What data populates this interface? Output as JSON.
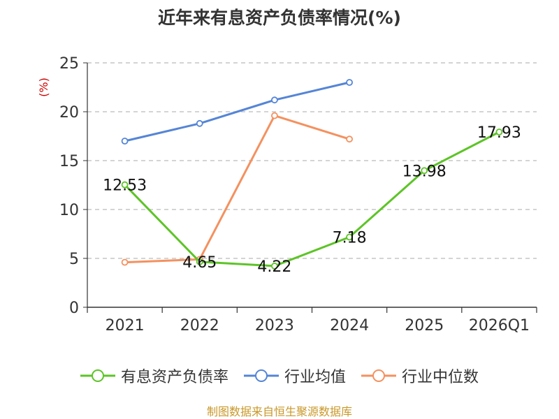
{
  "chart_data": {
    "type": "line",
    "title": "近年来有息资产负债率情况(%)",
    "ylabel": "(%)",
    "xlabel": "",
    "categories": [
      "2021",
      "2022",
      "2023",
      "2024",
      "2025",
      "2026Q1"
    ],
    "ylim": [
      0,
      25
    ],
    "yticks": [
      "0",
      "5",
      "10",
      "15",
      "20",
      "25"
    ],
    "grid": true,
    "legend_position": "bottom",
    "series": [
      {
        "name": "有息资产负债率",
        "color": "#5dc427",
        "values": [
          12.53,
          4.65,
          4.22,
          7.18,
          13.98,
          17.93
        ],
        "labels": [
          "12.53",
          "4.65",
          "4.22",
          "7.18",
          "13.98",
          "17.93"
        ]
      },
      {
        "name": "行业均值",
        "color": "#5585d6",
        "values": [
          17.0,
          18.8,
          21.2,
          23.0,
          null,
          null
        ]
      },
      {
        "name": "行业中位数",
        "color": "#f4915f",
        "values": [
          4.6,
          4.9,
          19.6,
          17.2,
          null,
          null
        ]
      }
    ]
  },
  "footer": {
    "source": "制图数据来自恒生聚源数据库"
  },
  "colors": {
    "ylabel": "#cc0000",
    "axis": "#333333",
    "grid": "#bbbbbb"
  }
}
